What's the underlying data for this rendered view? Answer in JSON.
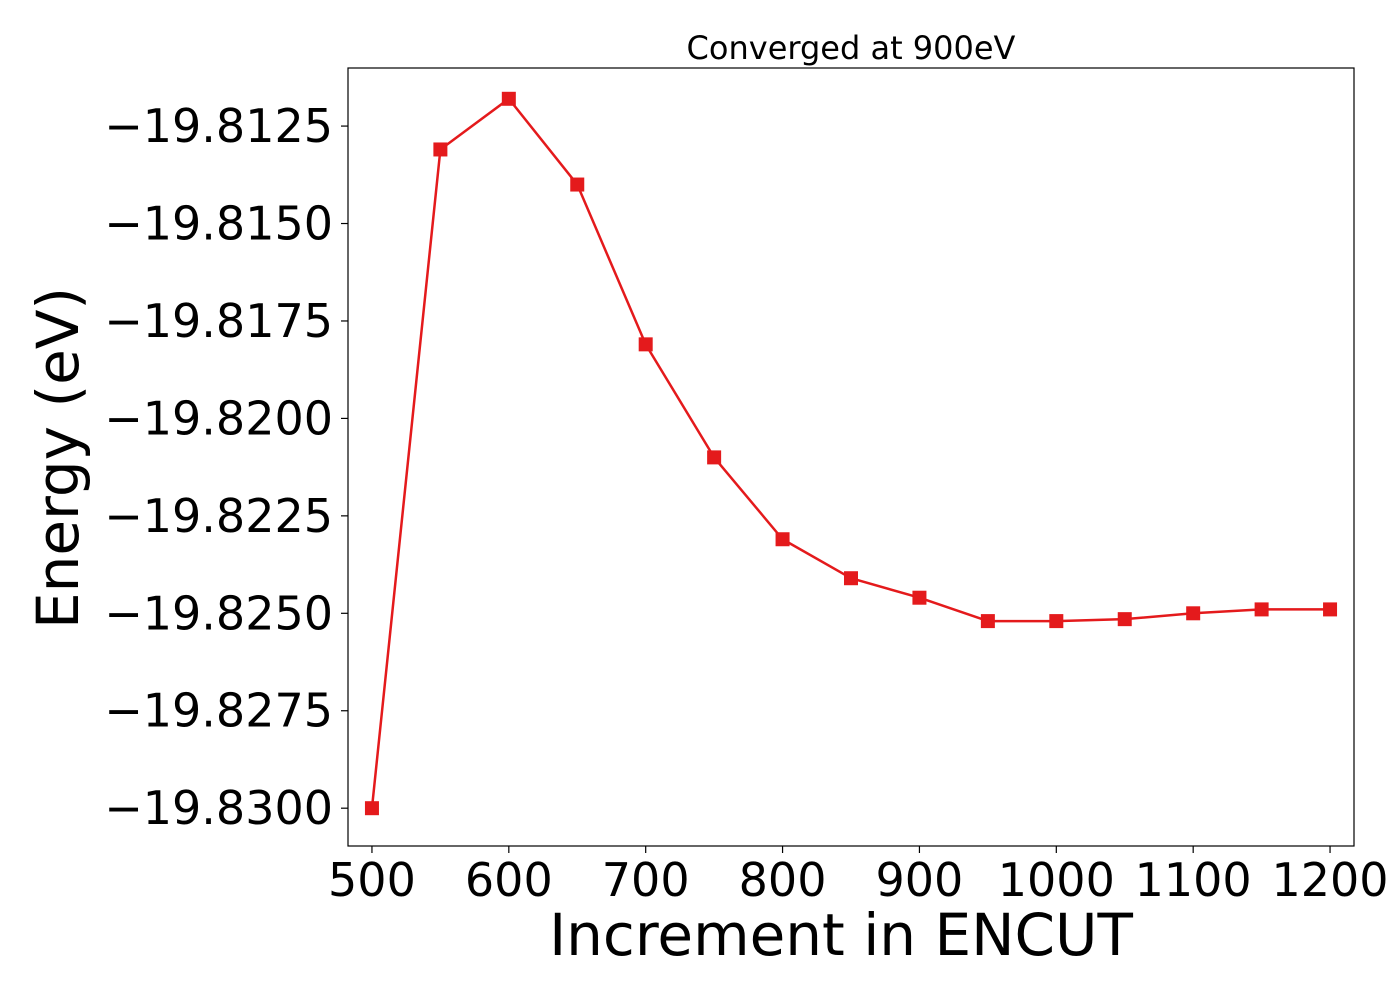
{
  "chart_data": {
    "type": "line",
    "title": "Converged at 900eV",
    "xlabel": "Increment in ENCUT",
    "ylabel": "Energy (eV)",
    "xlim": [
      482.5,
      1217.5
    ],
    "ylim": [
      -19.83097,
      -19.81101
    ],
    "x_ticks": [
      500,
      600,
      700,
      800,
      900,
      1000,
      1100,
      1200
    ],
    "x_tick_labels": [
      "500",
      "600",
      "700",
      "800",
      "900",
      "1000",
      "1100",
      "1200"
    ],
    "y_ticks": [
      -19.8125,
      -19.815,
      -19.8175,
      -19.82,
      -19.8225,
      -19.825,
      -19.8275,
      -19.83
    ],
    "y_tick_labels": [
      "−19.8125",
      "−19.8150",
      "−19.8175",
      "−19.8200",
      "−19.8225",
      "−19.8250",
      "−19.8275",
      "−19.8300"
    ],
    "grid": false,
    "marker": "square",
    "series": [
      {
        "color": "#e41a1c",
        "x": [
          500,
          550,
          600,
          650,
          700,
          750,
          800,
          850,
          900,
          950,
          1000,
          1050,
          1100,
          1150,
          1200
        ],
        "values": [
          -19.83,
          -19.8131,
          -19.8118,
          -19.814,
          -19.8181,
          -19.821,
          -19.8231,
          -19.8241,
          -19.8246,
          -19.8252,
          -19.8252,
          -19.82515,
          -19.825,
          -19.8249,
          -19.8249
        ]
      }
    ]
  }
}
